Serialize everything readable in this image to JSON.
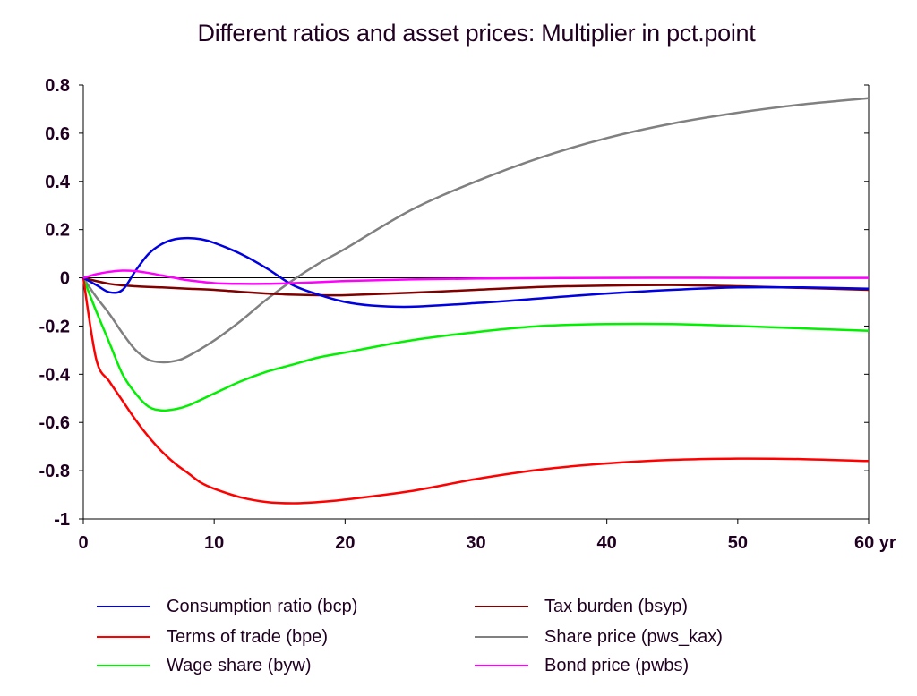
{
  "chart_data": {
    "type": "line",
    "title": "Different ratios and asset prices: Multiplier in pct.point",
    "xlabel": "",
    "ylabel": "",
    "xlim": [
      0,
      60
    ],
    "ylim": [
      -1,
      0.8
    ],
    "x_ticks": [
      0,
      10,
      20,
      30,
      40,
      50,
      60
    ],
    "x_tick_labels": [
      "0",
      "10",
      "20",
      "30",
      "40",
      "50",
      "60 yr"
    ],
    "y_ticks": [
      0.8,
      0.6,
      0.4,
      0.2,
      0,
      -0.2,
      -0.4,
      -0.6,
      -0.8,
      -1
    ],
    "y_tick_labels": [
      "0.8",
      "0.6",
      "0.4",
      "0.2",
      "0",
      "-0.2",
      "-0.4",
      "-0.6",
      "-0.8",
      "-1"
    ],
    "grid": false,
    "legend_position": "bottom",
    "series": [
      {
        "name": "Consumption ratio (bcp)",
        "color": "#0000e0",
        "points": [
          [
            0,
            0
          ],
          [
            1,
            -0.03
          ],
          [
            2,
            -0.06
          ],
          [
            3,
            -0.05
          ],
          [
            4,
            0.03
          ],
          [
            5,
            0.1
          ],
          [
            6,
            0.14
          ],
          [
            7,
            0.16
          ],
          [
            8,
            0.165
          ],
          [
            9,
            0.16
          ],
          [
            10,
            0.145
          ],
          [
            12,
            0.1
          ],
          [
            14,
            0.04
          ],
          [
            16,
            -0.03
          ],
          [
            18,
            -0.07
          ],
          [
            20,
            -0.1
          ],
          [
            22,
            -0.115
          ],
          [
            25,
            -0.12
          ],
          [
            30,
            -0.105
          ],
          [
            35,
            -0.085
          ],
          [
            40,
            -0.065
          ],
          [
            45,
            -0.05
          ],
          [
            50,
            -0.04
          ],
          [
            55,
            -0.04
          ],
          [
            60,
            -0.045
          ]
        ]
      },
      {
        "name": "Terms of trade (bpe)",
        "color": "#ff0000",
        "points": [
          [
            0,
            0
          ],
          [
            1,
            -0.34
          ],
          [
            2,
            -0.43
          ],
          [
            3,
            -0.51
          ],
          [
            4,
            -0.59
          ],
          [
            5,
            -0.66
          ],
          [
            6,
            -0.72
          ],
          [
            7,
            -0.77
          ],
          [
            8,
            -0.81
          ],
          [
            9,
            -0.85
          ],
          [
            10,
            -0.875
          ],
          [
            12,
            -0.91
          ],
          [
            14,
            -0.93
          ],
          [
            16,
            -0.935
          ],
          [
            18,
            -0.93
          ],
          [
            20,
            -0.92
          ],
          [
            25,
            -0.885
          ],
          [
            30,
            -0.835
          ],
          [
            35,
            -0.795
          ],
          [
            40,
            -0.77
          ],
          [
            45,
            -0.755
          ],
          [
            50,
            -0.75
          ],
          [
            55,
            -0.752
          ],
          [
            60,
            -0.76
          ]
        ]
      },
      {
        "name": "Wage share (byw)",
        "color": "#00f000",
        "points": [
          [
            0,
            0
          ],
          [
            1,
            -0.14
          ],
          [
            2,
            -0.27
          ],
          [
            3,
            -0.4
          ],
          [
            4,
            -0.48
          ],
          [
            5,
            -0.535
          ],
          [
            6,
            -0.55
          ],
          [
            7,
            -0.545
          ],
          [
            8,
            -0.53
          ],
          [
            10,
            -0.48
          ],
          [
            12,
            -0.43
          ],
          [
            14,
            -0.39
          ],
          [
            16,
            -0.36
          ],
          [
            18,
            -0.33
          ],
          [
            20,
            -0.31
          ],
          [
            25,
            -0.26
          ],
          [
            30,
            -0.225
          ],
          [
            35,
            -0.2
          ],
          [
            40,
            -0.192
          ],
          [
            45,
            -0.192
          ],
          [
            50,
            -0.2
          ],
          [
            55,
            -0.21
          ],
          [
            60,
            -0.22
          ]
        ]
      },
      {
        "name": "Tax burden (bsyp)",
        "color": "#800000",
        "points": [
          [
            0,
            0
          ],
          [
            2,
            -0.025
          ],
          [
            4,
            -0.035
          ],
          [
            6,
            -0.04
          ],
          [
            8,
            -0.045
          ],
          [
            10,
            -0.05
          ],
          [
            12,
            -0.058
          ],
          [
            14,
            -0.065
          ],
          [
            16,
            -0.07
          ],
          [
            18,
            -0.072
          ],
          [
            20,
            -0.072
          ],
          [
            25,
            -0.062
          ],
          [
            30,
            -0.05
          ],
          [
            35,
            -0.038
          ],
          [
            40,
            -0.032
          ],
          [
            45,
            -0.03
          ],
          [
            50,
            -0.035
          ],
          [
            55,
            -0.042
          ],
          [
            60,
            -0.05
          ]
        ]
      },
      {
        "name": "Share price (pws_kax)",
        "color": "#808080",
        "points": [
          [
            0,
            0
          ],
          [
            1,
            -0.08
          ],
          [
            2,
            -0.15
          ],
          [
            3,
            -0.23
          ],
          [
            4,
            -0.3
          ],
          [
            5,
            -0.34
          ],
          [
            6,
            -0.35
          ],
          [
            7,
            -0.345
          ],
          [
            8,
            -0.325
          ],
          [
            10,
            -0.26
          ],
          [
            12,
            -0.18
          ],
          [
            14,
            -0.09
          ],
          [
            16,
            -0.01
          ],
          [
            18,
            0.06
          ],
          [
            20,
            0.12
          ],
          [
            25,
            0.28
          ],
          [
            30,
            0.4
          ],
          [
            35,
            0.5
          ],
          [
            40,
            0.58
          ],
          [
            45,
            0.64
          ],
          [
            50,
            0.685
          ],
          [
            55,
            0.72
          ],
          [
            60,
            0.745
          ]
        ]
      },
      {
        "name": "Bond price (pwbs)",
        "color": "#ff00ff",
        "points": [
          [
            0,
            0
          ],
          [
            1,
            0.015
          ],
          [
            2,
            0.025
          ],
          [
            3,
            0.03
          ],
          [
            4,
            0.028
          ],
          [
            5,
            0.02
          ],
          [
            6,
            0.01
          ],
          [
            7,
            0
          ],
          [
            8,
            -0.01
          ],
          [
            10,
            -0.022
          ],
          [
            12,
            -0.025
          ],
          [
            14,
            -0.025
          ],
          [
            16,
            -0.022
          ],
          [
            18,
            -0.018
          ],
          [
            20,
            -0.013
          ],
          [
            25,
            -0.007
          ],
          [
            30,
            -0.003
          ],
          [
            40,
            0
          ],
          [
            50,
            0
          ],
          [
            60,
            0
          ]
        ]
      }
    ]
  }
}
